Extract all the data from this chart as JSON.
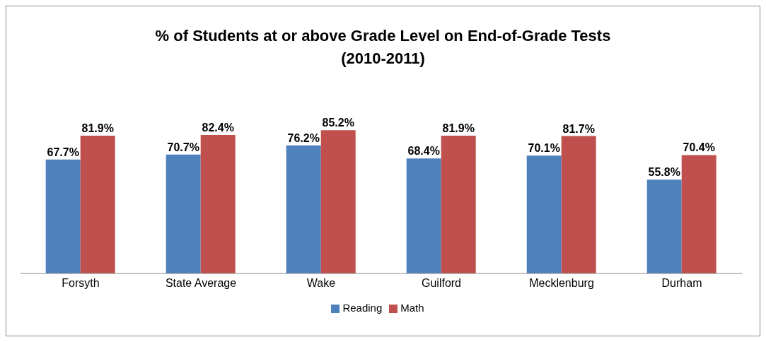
{
  "chart_data": {
    "type": "bar",
    "title": "% of Students at or above Grade Level on End-of-Grade Tests (2010-2011)",
    "categories": [
      "Forsyth",
      "State Average",
      "Wake",
      "Guilford",
      "Mecklenburg",
      "Durham"
    ],
    "series": [
      {
        "name": "Reading",
        "color": "#4f81bd",
        "values": [
          67.7,
          70.7,
          76.2,
          68.4,
          70.1,
          55.8
        ],
        "value_labels": [
          "67.7%",
          "70.7%",
          "76.2%",
          "68.4%",
          "70.1%",
          "55.8%"
        ]
      },
      {
        "name": "Math",
        "color": "#c0504d",
        "values": [
          81.9,
          82.4,
          85.2,
          81.9,
          81.7,
          70.4
        ],
        "value_labels": [
          "81.9%",
          "82.4%",
          "85.2%",
          "81.9%",
          "81.7%",
          "70.4%"
        ]
      }
    ],
    "tick_labels": "x",
    "grid": false,
    "legend": "bottom"
  }
}
